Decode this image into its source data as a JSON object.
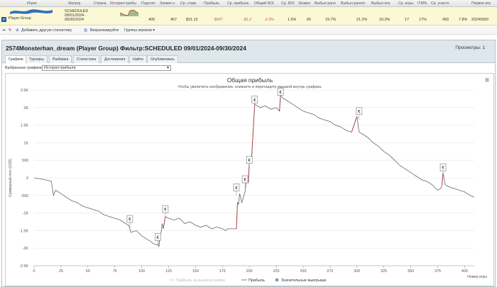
{
  "grid": {
    "headers": [
      "Игрок",
      "Фильтр",
      "Страна",
      "История прибы",
      "Подсчет",
      "Заявок н",
      "Ср. ставк",
      "Прибыль",
      "Ср. прибыль",
      "Общий ROI",
      "Ср. ROI",
      "Уровен",
      "Выбыл ранo",
      "Выбыл ранo/о",
      "Выбыл поз",
      "Ср. игры",
      "ITM%",
      "Ср. участн",
      "Первое игр"
    ],
    "row": {
      "player": "Player Group",
      "filter_1": "SCHEDULED",
      "filter_2": "09/01/2024-",
      "filter_3": "09/30/2024",
      "count": "409",
      "entries": "457",
      "avg_stake": "$31.13",
      "profit": "-$547",
      "avg_profit": "-$1.2",
      "total_roi": "-3.3%",
      "avg_roi": "1.6%",
      "level": "65",
      "early_out": "19.7%",
      "early_out_2": "21.2%",
      "late_out": "10.3%",
      "avg_games": "17",
      "itm": "17%",
      "avg_entrants": "493",
      "coeff": "7.8%",
      "first_game": "2024/09/0"
    }
  },
  "toolbar": {
    "add_stats": "Добавить другую статистику",
    "visualize": "Визуализируйте",
    "player_groups": "Группы игроков ▾"
  },
  "panel": {
    "title": "2574Monsterhan_dream (Player Group) Фильтр:SCHEDULED 09/01/2024-09/30/2024",
    "views": "Просмотры: 1",
    "tabs": [
      "Графики",
      "Турниры",
      "Разбивка",
      "Статистика",
      "Достижения",
      "Найти",
      "Опубликовать"
    ],
    "select_label": "Выбранные графики:",
    "select_value": "История прибыли"
  },
  "colors": {
    "accent": "#2a6ebb",
    "row_bg": "#fbf8d6",
    "panel_head": "#dfe7ec",
    "profit_line": "#b34040"
  },
  "chart_data": {
    "type": "line",
    "title": "Общая прибыль",
    "subtitle": "Чтобы увеличить изображение, кликните и перетащите мышкой внутрь графика.",
    "ylabel": "Суммарный итог (USD)",
    "xlabel": "Номер игры",
    "xlim": [
      0,
      409
    ],
    "ylim": [
      -2500,
      2500
    ],
    "xticks": [
      0,
      25,
      50,
      75,
      100,
      125,
      150,
      175,
      200,
      225,
      250,
      275,
      300,
      325,
      350,
      375,
      400
    ],
    "yticks": [
      2500,
      2000,
      1500,
      1000,
      500,
      0,
      -500,
      -1000,
      -1500,
      -2000,
      -2500
    ],
    "ytick_labels": [
      "2.5K",
      "2K",
      "1.5K",
      "1K",
      "500",
      "0",
      "-500",
      "-1K",
      "-1.5K",
      "-2K",
      "-2.5K"
    ],
    "grid": true,
    "legend": [
      "Прибыль за вычетом рейка",
      "Прибыль",
      "Значительные выигрыши"
    ],
    "legend_placement": "bottom",
    "series": [
      {
        "name": "Прибыль",
        "x": [
          0,
          10,
          16,
          18,
          20,
          25,
          30,
          35,
          40,
          45,
          50,
          55,
          60,
          65,
          70,
          75,
          80,
          85,
          88,
          90,
          95,
          100,
          105,
          108,
          110,
          113,
          115,
          116,
          117,
          118,
          119,
          120,
          122,
          125,
          130,
          135,
          140,
          145,
          150,
          155,
          160,
          165,
          170,
          175,
          178,
          180,
          185,
          188,
          189,
          190,
          191,
          193,
          195,
          196,
          197,
          198,
          199,
          200,
          202,
          205,
          210,
          215,
          220,
          225,
          228,
          229,
          230,
          232,
          235,
          240,
          245,
          250,
          255,
          260,
          265,
          270,
          275,
          280,
          285,
          290,
          295,
          300,
          302,
          305,
          310,
          315,
          320,
          325,
          330,
          335,
          340,
          345,
          350,
          355,
          360,
          365,
          370,
          375,
          378,
          379,
          380,
          382,
          385,
          390,
          395,
          400,
          405,
          409
        ],
        "y": [
          0,
          -50,
          -100,
          -500,
          -350,
          -450,
          -550,
          -650,
          -700,
          -800,
          -850,
          -900,
          -950,
          -1050,
          -1100,
          -1150,
          -1200,
          -1300,
          -1350,
          -1550,
          -1500,
          -1650,
          -1750,
          -1800,
          -1850,
          -1900,
          -1900,
          -1950,
          -1600,
          -1550,
          -1300,
          -1450,
          -1100,
          -1150,
          -1200,
          -1150,
          -1300,
          -1250,
          -1350,
          -1400,
          -1350,
          -1450,
          -1400,
          -1450,
          -1500,
          -1450,
          -1450,
          -1450,
          -700,
          -750,
          -450,
          -700,
          -500,
          -400,
          -150,
          0,
          -150,
          450,
          500,
          2100,
          2000,
          2050,
          1950,
          2000,
          1900,
          2350,
          2300,
          2250,
          2200,
          2100,
          2000,
          1900,
          1850,
          1800,
          1700,
          1650,
          1600,
          1500,
          1450,
          1350,
          1300,
          1750,
          1300,
          1250,
          1150,
          1000,
          900,
          750,
          650,
          500,
          350,
          250,
          150,
          50,
          -50,
          -100,
          -200,
          -350,
          -300,
          -200,
          150,
          -200,
          -250,
          -300,
          -350,
          -400,
          -500,
          -550
        ]
      }
    ],
    "annotations": [
      {
        "x": 89,
        "y": -1170,
        "label": "€"
      },
      {
        "x": 115,
        "y": -1680,
        "label": "€"
      },
      {
        "x": 122,
        "y": -890,
        "label": "€"
      },
      {
        "x": 188,
        "y": -270,
        "label": "€"
      },
      {
        "x": 196,
        "y": -40,
        "label": "€"
      },
      {
        "x": 200,
        "y": 510,
        "label": "€"
      },
      {
        "x": 205,
        "y": 2230,
        "label": "€"
      },
      {
        "x": 229,
        "y": 2450,
        "label": "€"
      },
      {
        "x": 302,
        "y": 1900,
        "label": "€"
      },
      {
        "x": 380,
        "y": 300,
        "label": "€"
      }
    ]
  }
}
